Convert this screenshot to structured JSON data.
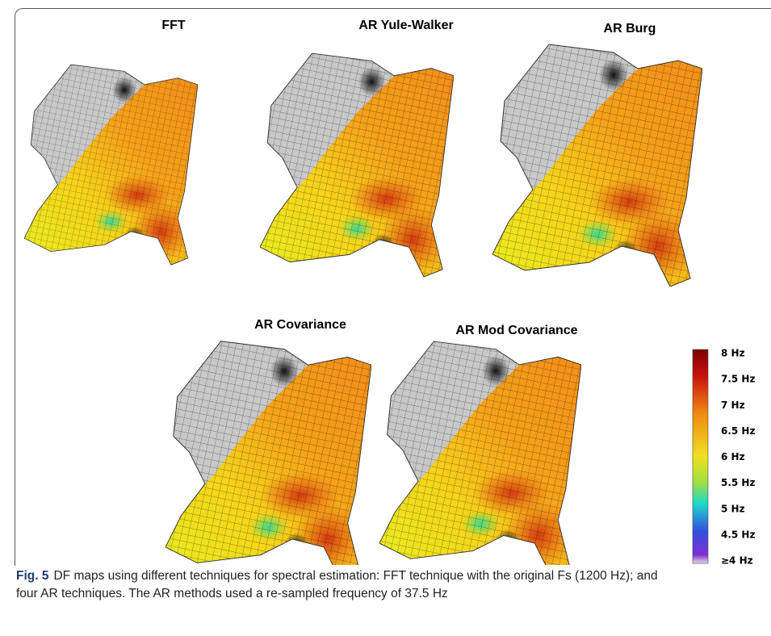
{
  "panels": [
    {
      "title": "FFT"
    },
    {
      "title": "AR Yule-Walker"
    },
    {
      "title": "AR Burg"
    },
    {
      "title": "AR Covariance"
    },
    {
      "title": "AR Mod Covariance"
    }
  ],
  "colorbar": {
    "labels": [
      "8 Hz",
      "7.5 Hz",
      "7 Hz",
      "6.5 Hz",
      "6 Hz",
      "5.5 Hz",
      "5 Hz",
      "4.5 Hz",
      "≥4 Hz"
    ]
  },
  "caption": {
    "label": "Fig. 5",
    "text": "DF maps using different techniques for spectral estimation: FFT technique with the original Fs (1200 Hz); and four AR techniques. The AR methods used a re-sampled frequency of 37.5 Hz"
  }
}
